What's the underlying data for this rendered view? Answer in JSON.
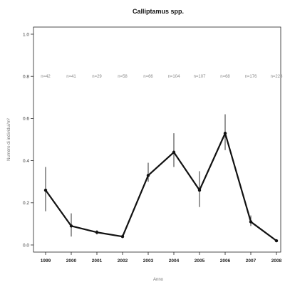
{
  "chart_data": {
    "type": "line",
    "title": "Calliptamus spp.",
    "xlabel": "Anno",
    "ylabel": "Numero di individui/m²",
    "x": [
      "1999",
      "2000",
      "2001",
      "2002",
      "2003",
      "2004",
      "2005",
      "2006",
      "2007",
      "2008"
    ],
    "y": [
      0.26,
      0.09,
      0.06,
      0.04,
      0.33,
      0.44,
      0.26,
      0.53,
      0.11,
      0.02
    ],
    "err_low": [
      0.16,
      0.04,
      0.05,
      0.04,
      0.3,
      0.37,
      0.18,
      0.45,
      0.09,
      0.02
    ],
    "err_high": [
      0.37,
      0.15,
      0.07,
      0.05,
      0.39,
      0.53,
      0.35,
      0.62,
      0.14,
      0.02
    ],
    "n_labels": [
      "n=42",
      "n=41",
      "n=29",
      "n=58",
      "n=66",
      "n=104",
      "n=107",
      "n=68",
      "n=176",
      "n=223"
    ],
    "n_level": 0.8,
    "ylim": [
      0,
      1.0
    ],
    "yticks": [
      "0.0",
      "0.2",
      "0.4",
      "0.6",
      "0.8",
      "1.0"
    ],
    "grid": false,
    "line_color": "#111111",
    "err_color": "#444444"
  }
}
